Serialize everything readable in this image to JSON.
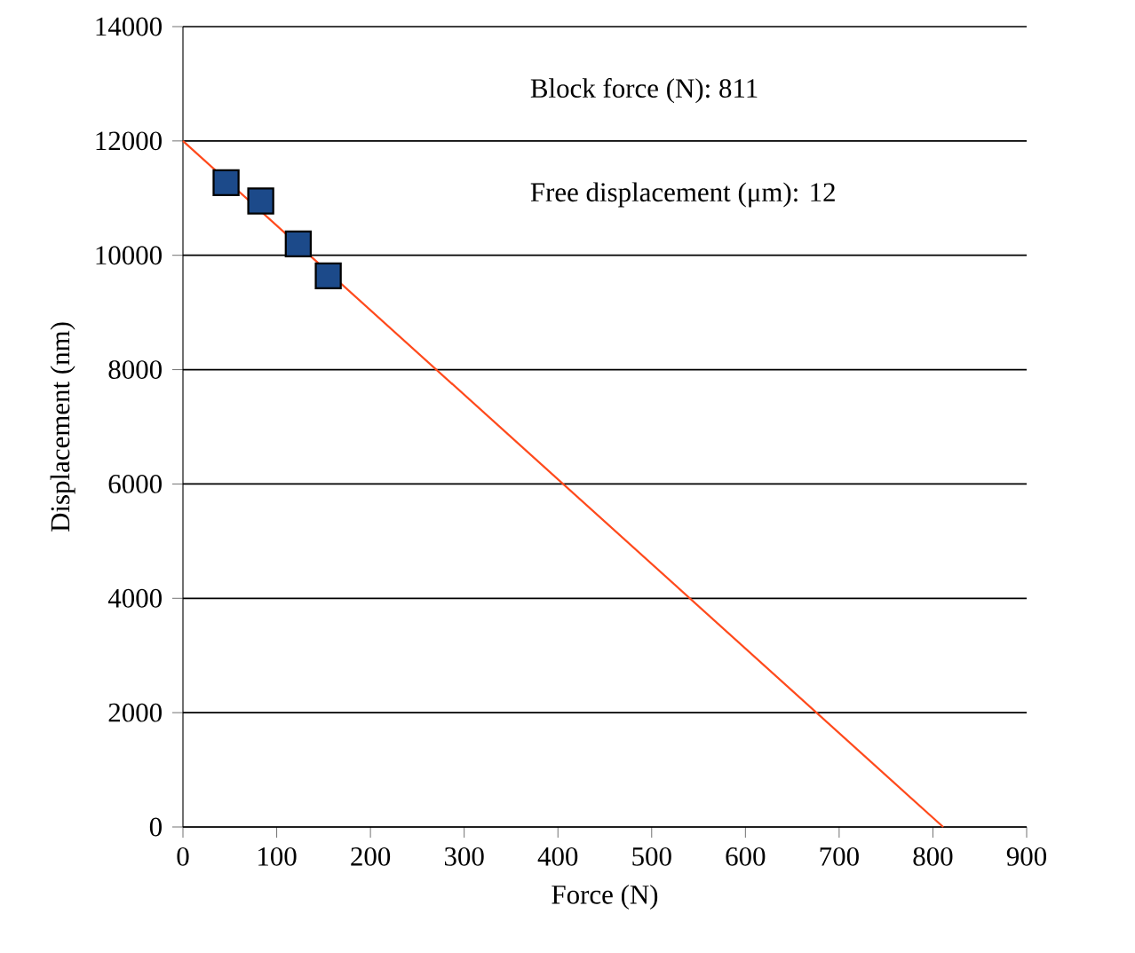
{
  "chart_data": {
    "type": "scatter",
    "xlabel": "Force (N)",
    "ylabel": "Displacement (nm)",
    "xlim": [
      0,
      900
    ],
    "ylim": [
      0,
      14000
    ],
    "xticks": [
      0,
      100,
      200,
      300,
      400,
      500,
      600,
      700,
      800,
      900
    ],
    "yticks": [
      0,
      2000,
      4000,
      6000,
      8000,
      10000,
      12000,
      14000
    ],
    "grid": "y",
    "annotations": [
      "Block force (N): 811",
      "Free displacement (μm): 12"
    ],
    "series": [
      {
        "type": "line",
        "color": "#ff4a1c",
        "x": [
          0,
          811
        ],
        "values": [
          12000,
          0
        ],
        "marker": "none"
      },
      {
        "color": "#1c4a8a",
        "x": [
          46,
          83,
          123,
          155
        ],
        "values": [
          11270,
          10950,
          10200,
          9640
        ],
        "marker": "square"
      }
    ]
  }
}
